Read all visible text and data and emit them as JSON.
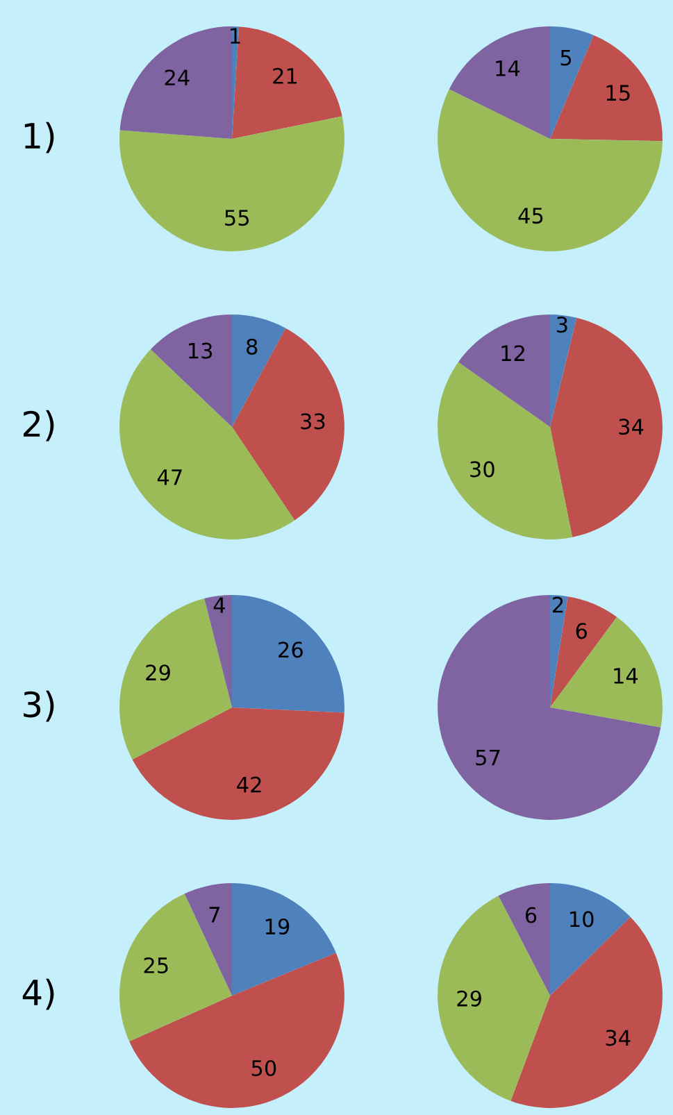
{
  "chart_data": [
    {
      "type": "pie",
      "title": "1)",
      "categories": [
        null,
        null,
        null,
        null
      ],
      "values": [
        1,
        21,
        55,
        24
      ],
      "colors": [
        "#4f81bd",
        "#c0504d",
        "#9bbb59",
        "#8064a2"
      ],
      "data_labels": true
    },
    {
      "type": "pie",
      "categories": [
        null,
        null,
        null,
        null
      ],
      "values": [
        5,
        15,
        45,
        14
      ],
      "colors": [
        "#4f81bd",
        "#c0504d",
        "#9bbb59",
        "#8064a2"
      ],
      "data_labels": true
    },
    {
      "type": "pie",
      "title": "2)",
      "categories": [
        null,
        null,
        null,
        null
      ],
      "values": [
        8,
        33,
        47,
        13
      ],
      "colors": [
        "#4f81bd",
        "#c0504d",
        "#9bbb59",
        "#8064a2"
      ],
      "data_labels": true
    },
    {
      "type": "pie",
      "categories": [
        null,
        null,
        null,
        null
      ],
      "values": [
        3,
        34,
        30,
        12
      ],
      "colors": [
        "#4f81bd",
        "#c0504d",
        "#9bbb59",
        "#8064a2"
      ],
      "data_labels": true
    },
    {
      "type": "pie",
      "title": "3)",
      "categories": [
        null,
        null,
        null,
        null
      ],
      "values": [
        26,
        42,
        29,
        4
      ],
      "colors": [
        "#4f81bd",
        "#c0504d",
        "#9bbb59",
        "#8064a2"
      ],
      "data_labels": true
    },
    {
      "type": "pie",
      "categories": [
        null,
        null,
        null,
        null
      ],
      "values": [
        2,
        6,
        14,
        57
      ],
      "colors": [
        "#4f81bd",
        "#c0504d",
        "#9bbb59",
        "#8064a2"
      ],
      "data_labels": true
    },
    {
      "type": "pie",
      "title": "4)",
      "categories": [
        null,
        null,
        null,
        null
      ],
      "values": [
        19,
        50,
        25,
        7
      ],
      "colors": [
        "#4f81bd",
        "#c0504d",
        "#9bbb59",
        "#8064a2"
      ],
      "data_labels": true
    },
    {
      "type": "pie",
      "categories": [
        null,
        null,
        null,
        null
      ],
      "values": [
        10,
        34,
        29,
        6
      ],
      "colors": [
        "#4f81bd",
        "#c0504d",
        "#9bbb59",
        "#8064a2"
      ],
      "data_labels": true
    }
  ]
}
